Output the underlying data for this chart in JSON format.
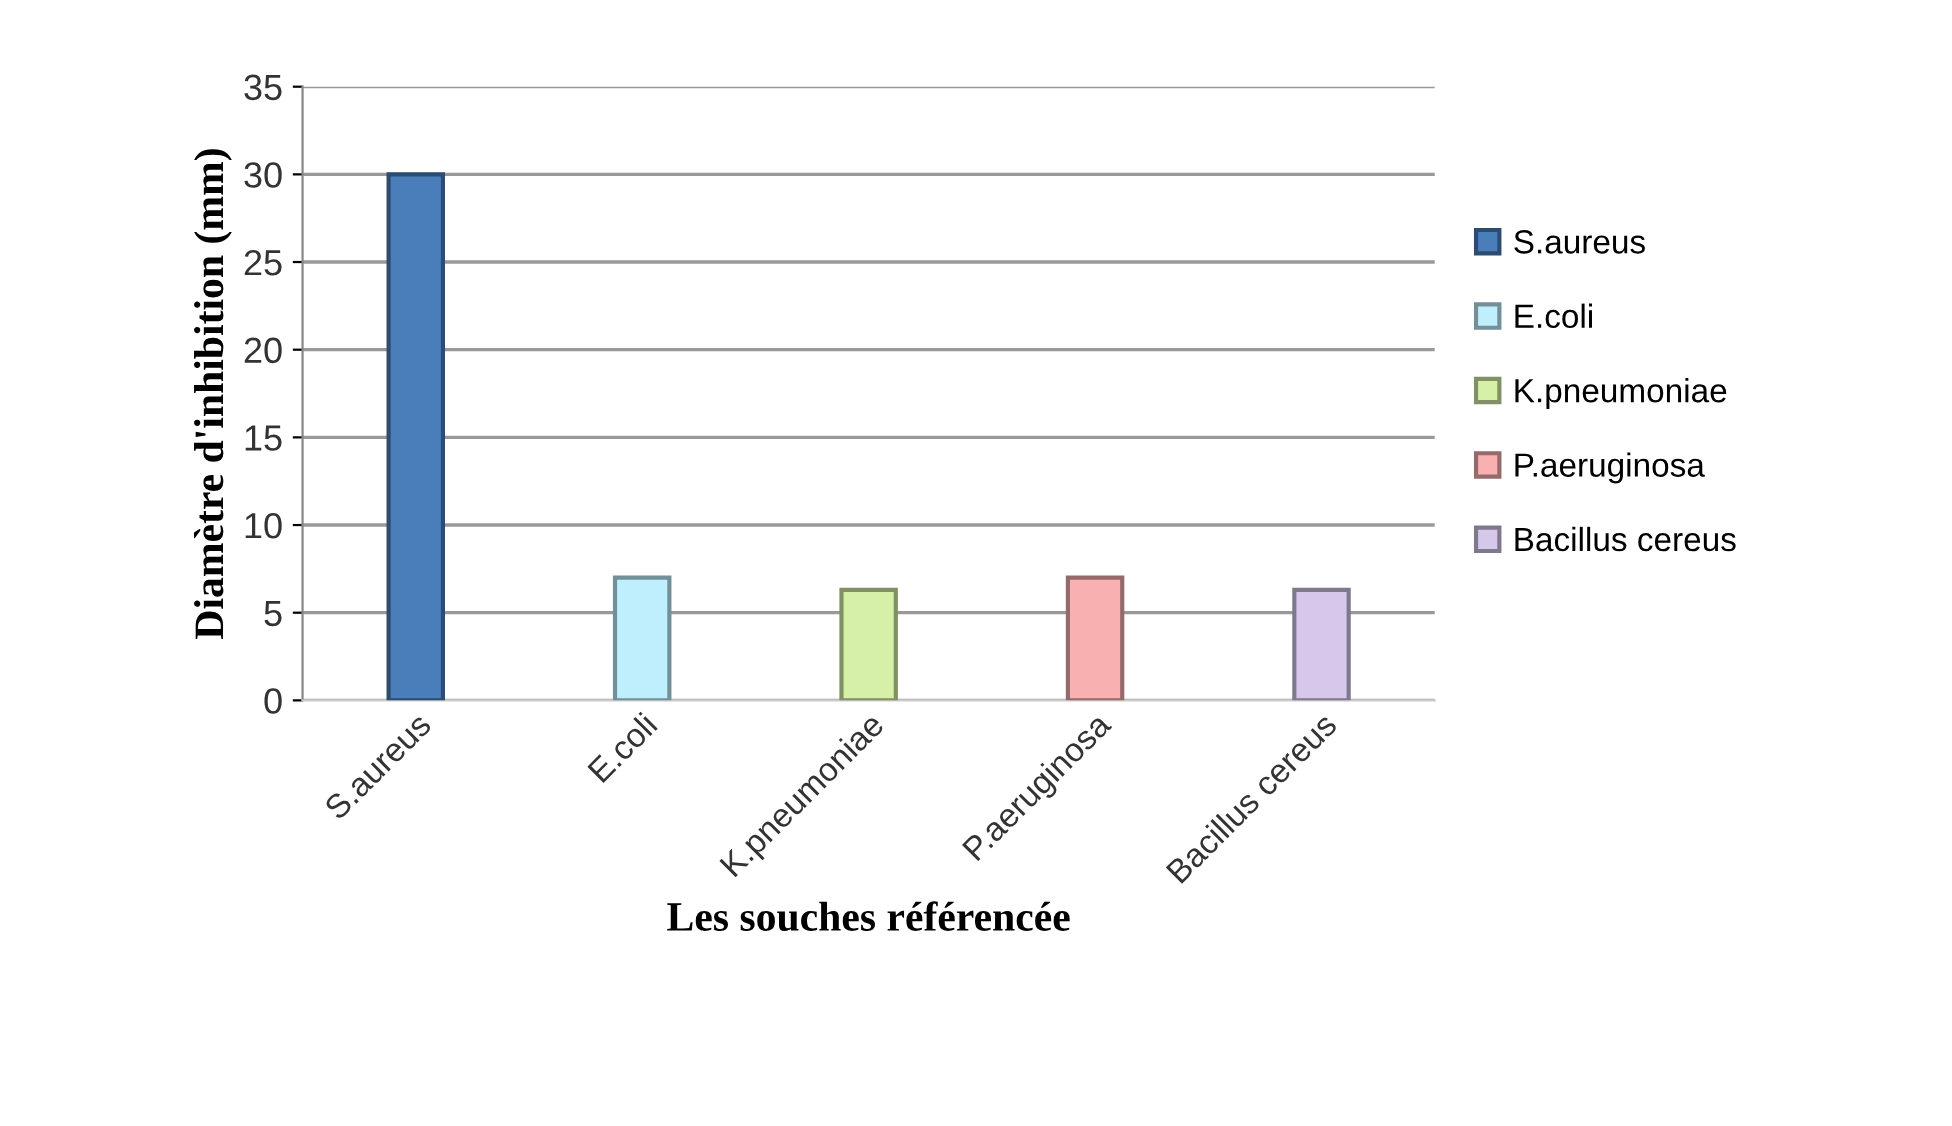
{
  "chart_data": {
    "type": "bar",
    "xlabel": "Les souches référencée",
    "ylabel": "Diamètre d'inhibition (mm)",
    "categories": [
      "S.aureus",
      "E.coli",
      "K.pneumoniae",
      "P.aeruginosa",
      "Bacillus cereus"
    ],
    "series": [
      {
        "name": "S.aureus",
        "color": "#4a7ebb",
        "values": [
          30,
          null,
          null,
          null,
          null
        ]
      },
      {
        "name": "E.coli",
        "color": "#bfeefc",
        "values": [
          null,
          7,
          null,
          null,
          null
        ]
      },
      {
        "name": "K.pneumoniae",
        "color": "#d7f0a8",
        "values": [
          null,
          null,
          6.3,
          null,
          null
        ]
      },
      {
        "name": "P.aeruginosa",
        "color": "#f9b0b0",
        "values": [
          null,
          null,
          null,
          7,
          null
        ]
      },
      {
        "name": "Bacillus cereus",
        "color": "#d5c8ea",
        "values": [
          null,
          null,
          null,
          null,
          6.3
        ]
      }
    ],
    "ylim": [
      0,
      35
    ],
    "yticks": [
      0,
      5,
      10,
      15,
      20,
      25,
      30,
      35
    ],
    "grid": "y",
    "legend": "right"
  }
}
